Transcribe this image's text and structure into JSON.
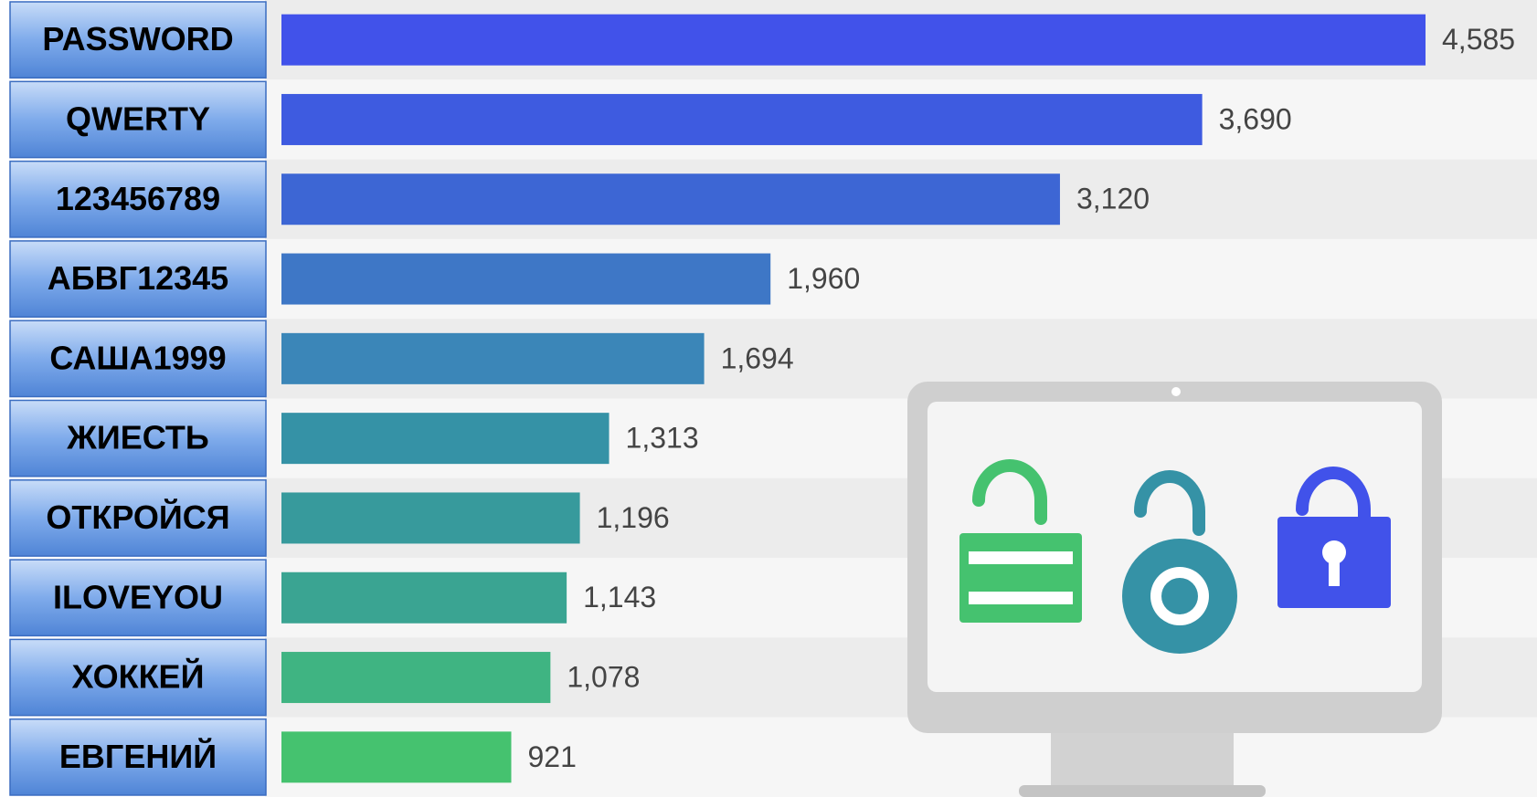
{
  "chart_data": {
    "type": "hbar",
    "categories": [
      "PASSWORD",
      "QWERTY",
      "123456789",
      "АБВГ12345",
      "САША1999",
      "ЖИЕСТЬ",
      "ОТКРОЙСЯ",
      "ILOVEYOU",
      "ХОККЕЙ",
      "ЕВГЕНИЙ"
    ],
    "values": [
      4585,
      3690,
      3120,
      1960,
      1694,
      1313,
      1196,
      1143,
      1078,
      921
    ],
    "value_labels": [
      "4,585",
      "3,690",
      "3,120",
      "1,960",
      "1,694",
      "1,313",
      "1,196",
      "1,143",
      "1,078",
      "921"
    ],
    "colors": [
      "#4152ea",
      "#3e5be0",
      "#3d66d4",
      "#3e77c6",
      "#3b86b8",
      "#3592a6",
      "#379a9c",
      "#3aa492",
      "#3fb482",
      "#45c26f"
    ]
  }
}
